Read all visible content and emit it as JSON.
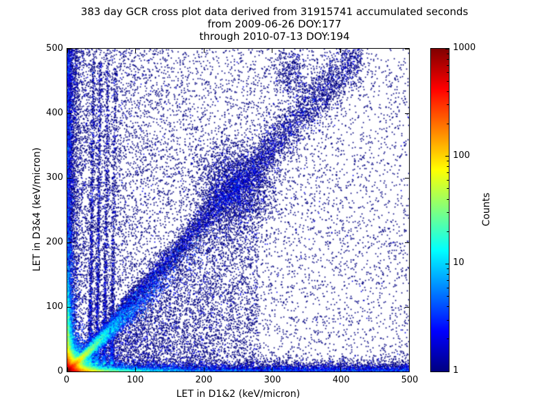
{
  "chart_data": {
    "type": "heatmap",
    "title": "383 day GCR cross plot data derived from 31915741 accumulated seconds",
    "subtitle_lines": [
      "from 2009-06-26 DOY:177",
      "through 2010-07-13 DOY:194"
    ],
    "xlabel": "LET in D1&2 (keV/micron)",
    "ylabel": "LET in D3&4 (keV/micron)",
    "xlim": [
      0,
      500
    ],
    "ylim": [
      0,
      500
    ],
    "xticks": [
      0,
      100,
      200,
      300,
      400,
      500
    ],
    "yticks": [
      0,
      100,
      200,
      300,
      400,
      500
    ],
    "grid": false,
    "colorbar": {
      "label": "Counts",
      "scale": "log",
      "min": 1,
      "max": 1000,
      "ticks": [
        1,
        10,
        100,
        1000
      ],
      "colormap": "jet",
      "stops": [
        {
          "p": 0.0,
          "c": "#000080"
        },
        {
          "p": 0.125,
          "c": "#0000ff"
        },
        {
          "p": 0.375,
          "c": "#00ffff"
        },
        {
          "p": 0.5,
          "c": "#7fff7f"
        },
        {
          "p": 0.625,
          "c": "#ffff00"
        },
        {
          "p": 0.875,
          "c": "#ff0000"
        },
        {
          "p": 1.0,
          "c": "#800000"
        }
      ]
    },
    "point_color_low": "#000080",
    "density_model": {
      "seed": 7,
      "log_decades": 3,
      "features": [
        {
          "kind": "pt",
          "n": 6000,
          "w": 1,
          "x": {
            "d": "u",
            "a": 0,
            "b": 500
          },
          "y": {
            "d": "u",
            "a": 0,
            "b": 500
          }
        },
        {
          "kind": "pt",
          "n": 5000,
          "w": 1,
          "x": {
            "d": "e",
            "s": 110
          },
          "y": {
            "d": "u",
            "a": 0,
            "b": 500
          }
        },
        {
          "kind": "pt",
          "n": 7000,
          "w": 1,
          "x": {
            "d": "u",
            "a": 0,
            "b": 500
          },
          "y": {
            "d": "e",
            "s": 5
          }
        },
        {
          "kind": "pt",
          "n": 6000,
          "w": 3,
          "x": {
            "d": "e",
            "s": 40
          },
          "y": {
            "d": "e",
            "s": 3
          }
        },
        {
          "kind": "pt",
          "n": 5000,
          "w": 1,
          "x": {
            "d": "e",
            "s": 5
          },
          "y": {
            "d": "u",
            "a": 0,
            "b": 500
          }
        },
        {
          "kind": "pt",
          "n": 5000,
          "w": 3,
          "x": {
            "d": "e",
            "s": 3
          },
          "y": {
            "d": "e",
            "s": 45
          }
        },
        {
          "kind": "pt",
          "n": 26000,
          "w": 3,
          "x": {
            "d": "e",
            "s": 9
          },
          "y": {
            "d": "e",
            "s": 9
          }
        },
        {
          "kind": "diag",
          "n": 9000,
          "w": 3,
          "t": {
            "d": "e",
            "s": 30
          },
          "slope": 1.0,
          "spread0": 2,
          "spreadk": 0.08
        },
        {
          "kind": "diag",
          "n": 9000,
          "w": 1,
          "t": {
            "d": "pow",
            "max": 430,
            "p": 1.3
          },
          "slope": 1.16,
          "spread0": 5,
          "spreadk": 0.05
        },
        {
          "kind": "blob",
          "n": 2500,
          "w": 1,
          "cx": 245,
          "cy": 285,
          "sx": 30,
          "sy": 35
        },
        {
          "kind": "blob",
          "n": 400,
          "w": 1,
          "cx": 325,
          "cy": 465,
          "sx": 14,
          "sy": 20
        },
        {
          "kind": "streak",
          "n": 1100,
          "w": 1,
          "x0": 33,
          "tilt": 0.012,
          "sigma": 1.4,
          "ypow": 2.2,
          "ymax": 470,
          "y0": 12
        },
        {
          "kind": "streak",
          "n": 1100,
          "w": 1,
          "x0": 43,
          "tilt": 0.012,
          "sigma": 1.4,
          "ypow": 2.2,
          "ymax": 470,
          "y0": 12
        },
        {
          "kind": "streak",
          "n": 1000,
          "w": 1,
          "x0": 54,
          "tilt": 0.012,
          "sigma": 1.5,
          "ypow": 2.2,
          "ymax": 470,
          "y0": 12
        },
        {
          "kind": "streak",
          "n": 900,
          "w": 1,
          "x0": 65,
          "tilt": 0.012,
          "sigma": 1.6,
          "ypow": 2.4,
          "ymax": 460,
          "y0": 12
        },
        {
          "kind": "tri",
          "n": 5000,
          "w": 1,
          "xmax": 280
        }
      ]
    }
  }
}
